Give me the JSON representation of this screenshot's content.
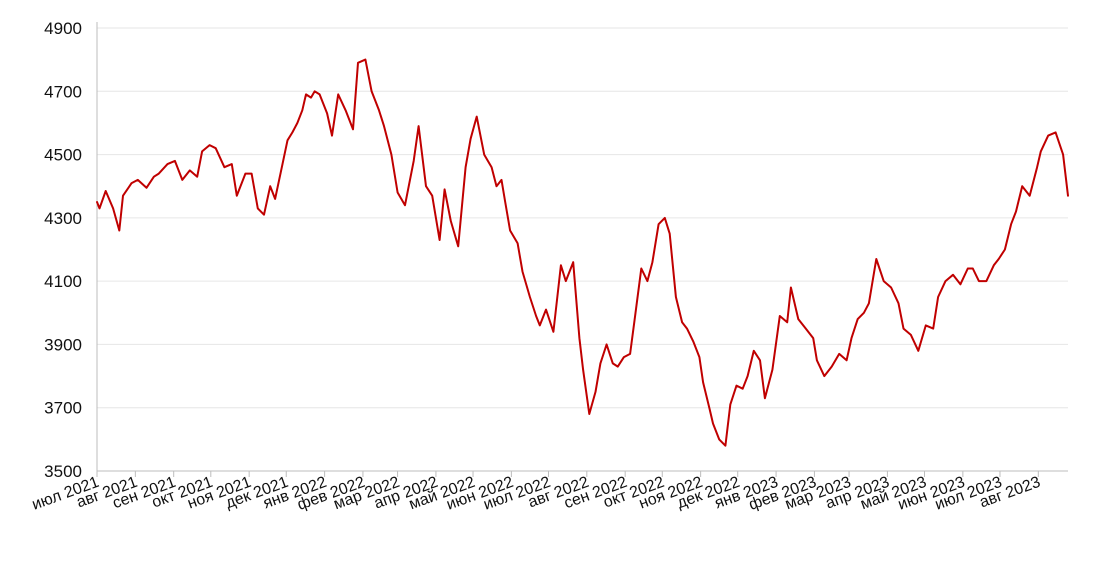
{
  "chart_data": {
    "type": "line",
    "title": "",
    "xlabel": "",
    "ylabel": "",
    "ylim": [
      3500,
      4900
    ],
    "y_ticks": [
      3500,
      3700,
      3900,
      4100,
      4300,
      4500,
      4700,
      4900
    ],
    "grid": true,
    "x_tick_labels": [
      "июл 2021",
      "авг 2021",
      "сен 2021",
      "окт 2021",
      "ноя 2021",
      "дек 2021",
      "янв 2022",
      "фев 2022",
      "мар 2022",
      "апр 2022",
      "май 2022",
      "июн 2022",
      "июл 2022",
      "авг 2022",
      "сен 2022",
      "окт 2022",
      "ноя 2022",
      "дек 2022",
      "янв 2023",
      "фев 2023",
      "мар 2023",
      "апр 2023",
      "май 2023",
      "июн 2023",
      "июл 2023",
      "авг 2023"
    ],
    "x_range": [
      "2021-07-01",
      "2023-08-25"
    ],
    "series": [
      {
        "name": "",
        "color": "#c00000",
        "x": [
          "2021-07-01",
          "2021-07-03",
          "2021-07-08",
          "2021-07-14",
          "2021-07-19",
          "2021-07-22",
          "2021-07-29",
          "2021-08-03",
          "2021-08-10",
          "2021-08-16",
          "2021-08-20",
          "2021-08-27",
          "2021-09-02",
          "2021-09-08",
          "2021-09-14",
          "2021-09-20",
          "2021-09-24",
          "2021-09-30",
          "2021-10-05",
          "2021-10-12",
          "2021-10-18",
          "2021-10-22",
          "2021-10-29",
          "2021-11-03",
          "2021-11-08",
          "2021-11-13",
          "2021-11-18",
          "2021-11-22",
          "2021-11-28",
          "2021-12-02",
          "2021-12-06",
          "2021-12-10",
          "2021-12-14",
          "2021-12-17",
          "2021-12-21",
          "2021-12-24",
          "2021-12-28",
          "2022-01-03",
          "2022-01-07",
          "2022-01-12",
          "2022-01-18",
          "2022-01-24",
          "2022-01-28",
          "2022-02-03",
          "2022-02-08",
          "2022-02-14",
          "2022-02-18",
          "2022-02-24",
          "2022-03-01",
          "2022-03-07",
          "2022-03-14",
          "2022-03-18",
          "2022-03-24",
          "2022-03-29",
          "2022-04-04",
          "2022-04-08",
          "2022-04-13",
          "2022-04-19",
          "2022-04-25",
          "2022-04-29",
          "2022-05-04",
          "2022-05-10",
          "2022-05-16",
          "2022-05-20",
          "2022-05-24",
          "2022-05-27",
          "2022-05-31",
          "2022-06-06",
          "2022-06-10",
          "2022-06-16",
          "2022-06-21",
          "2022-06-24",
          "2022-06-29",
          "2022-07-05",
          "2022-07-11",
          "2022-07-15",
          "2022-07-21",
          "2022-07-26",
          "2022-07-29",
          "2022-08-03",
          "2022-08-08",
          "2022-08-12",
          "2022-08-17",
          "2022-08-22",
          "2022-08-26",
          "2022-08-31",
          "2022-09-05",
          "2022-09-09",
          "2022-09-14",
          "2022-09-19",
          "2022-09-23",
          "2022-09-28",
          "2022-10-03",
          "2022-10-07",
          "2022-10-12",
          "2022-10-17",
          "2022-10-21",
          "2022-10-26",
          "2022-10-31",
          "2022-11-03",
          "2022-11-08",
          "2022-11-11",
          "2022-11-16",
          "2022-11-21",
          "2022-11-25",
          "2022-11-30",
          "2022-12-05",
          "2022-12-09",
          "2022-12-14",
          "2022-12-19",
          "2022-12-23",
          "2022-12-29",
          "2023-01-04",
          "2023-01-10",
          "2023-01-13",
          "2023-01-19",
          "2023-01-25",
          "2023-01-31",
          "2023-02-03",
          "2023-02-09",
          "2023-02-15",
          "2023-02-21",
          "2023-02-27",
          "2023-03-03",
          "2023-03-08",
          "2023-03-13",
          "2023-03-17",
          "2023-03-23",
          "2023-03-29",
          "2023-04-04",
          "2023-04-10",
          "2023-04-14",
          "2023-04-20",
          "2023-04-26",
          "2023-05-02",
          "2023-05-08",
          "2023-05-12",
          "2023-05-18",
          "2023-05-24",
          "2023-05-30",
          "2023-06-05",
          "2023-06-09",
          "2023-06-14",
          "2023-06-20",
          "2023-06-26",
          "2023-06-30",
          "2023-07-05",
          "2023-07-10",
          "2023-07-14",
          "2023-07-19",
          "2023-07-25",
          "2023-07-31",
          "2023-08-03",
          "2023-08-09",
          "2023-08-15",
          "2023-08-21",
          "2023-08-25"
        ],
        "values": [
          4350,
          4330,
          4385,
          4330,
          4260,
          4370,
          4410,
          4420,
          4395,
          4430,
          4440,
          4470,
          4480,
          4420,
          4450,
          4430,
          4510,
          4530,
          4520,
          4460,
          4470,
          4370,
          4440,
          4440,
          4330,
          4310,
          4400,
          4360,
          4470,
          4545,
          4570,
          4600,
          4640,
          4690,
          4680,
          4700,
          4690,
          4630,
          4560,
          4690,
          4640,
          4580,
          4790,
          4800,
          4700,
          4640,
          4590,
          4500,
          4380,
          4340,
          4480,
          4590,
          4400,
          4370,
          4230,
          4390,
          4290,
          4210,
          4460,
          4550,
          4620,
          4500,
          4460,
          4400,
          4420,
          4350,
          4260,
          4220,
          4130,
          4050,
          3990,
          3960,
          4010,
          3940,
          4150,
          4100,
          4160,
          3920,
          3820,
          3680,
          3750,
          3840,
          3900,
          3840,
          3830,
          3860,
          3870,
          3990,
          4140,
          4100,
          4160,
          4280,
          4300,
          4250,
          4050,
          3970,
          3950,
          3910,
          3860,
          3780,
          3700,
          3650,
          3600,
          3580,
          3710,
          3770,
          3760,
          3800,
          3880,
          3850,
          3730,
          3820,
          3990,
          3970,
          4080,
          3980,
          3950,
          3920,
          3850,
          3800,
          3830,
          3870,
          3850,
          3920,
          3980,
          4000,
          4030,
          4170,
          4100,
          4080,
          4030,
          3950,
          3930,
          3880,
          3960,
          3950,
          4050,
          4100,
          4120,
          4090,
          4140,
          4140,
          4100,
          4100,
          4150,
          4170,
          4200,
          4280,
          4320,
          4400,
          4370,
          4460,
          4510,
          4560,
          4570,
          4500,
          4370
        ]
      }
    ]
  }
}
